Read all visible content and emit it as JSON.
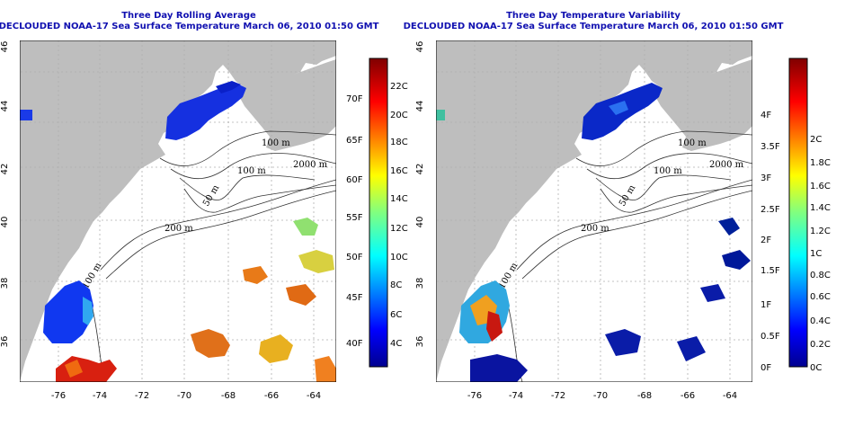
{
  "panels": [
    {
      "title": "Three Day Rolling Average",
      "subtitle": "DECLOUDED NOAA-17 Sea Surface Temperature March 06, 2010 01:50 GMT",
      "x_ticks": [
        "-76",
        "-74",
        "-72",
        "-70",
        "-68",
        "-66",
        "-64"
      ],
      "y_ticks": [
        "36",
        "38",
        "40",
        "42",
        "44",
        "46"
      ],
      "contour_labels": [
        "100 m",
        "2000 m",
        "100 m",
        "50 m",
        "200 m",
        "100 m"
      ],
      "colorbar": {
        "left_labels": [
          "4C",
          "6C",
          "8C",
          "10C",
          "12C",
          "14C",
          "16C",
          "18C",
          "20C",
          "22C"
        ],
        "right_labels": [
          "40F",
          "45F",
          "50F",
          "55F",
          "60F",
          "65F",
          "70F"
        ]
      }
    },
    {
      "title": "Three Day Temperature Variability",
      "subtitle": "DECLOUDED NOAA-17 Sea Surface Temperature March 06, 2010 01:50 GMT",
      "x_ticks": [
        "-76",
        "-74",
        "-72",
        "-70",
        "-68",
        "-66",
        "-64"
      ],
      "y_ticks": [
        "36",
        "38",
        "40",
        "42",
        "44",
        "46"
      ],
      "contour_labels": [
        "100 m",
        "2000 m",
        "100 m",
        "50 m",
        "200 m",
        "100 m"
      ],
      "colorbar": {
        "left_labels": [
          "0F",
          "0.5F",
          "1F",
          "1.5F",
          "2F",
          "2.5F",
          "3F",
          "3.5F",
          "4F"
        ],
        "right_labels": [
          "0C",
          "0.2C",
          "0.4C",
          "0.6C",
          "0.8C",
          "1C",
          "1.2C",
          "1.4C",
          "1.6C",
          "1.8C",
          "2C"
        ]
      }
    }
  ],
  "colors": {
    "title": "#1010b0",
    "land": "#bebebe",
    "ocean": "#ffffff",
    "grid": "#b0b0b0"
  }
}
